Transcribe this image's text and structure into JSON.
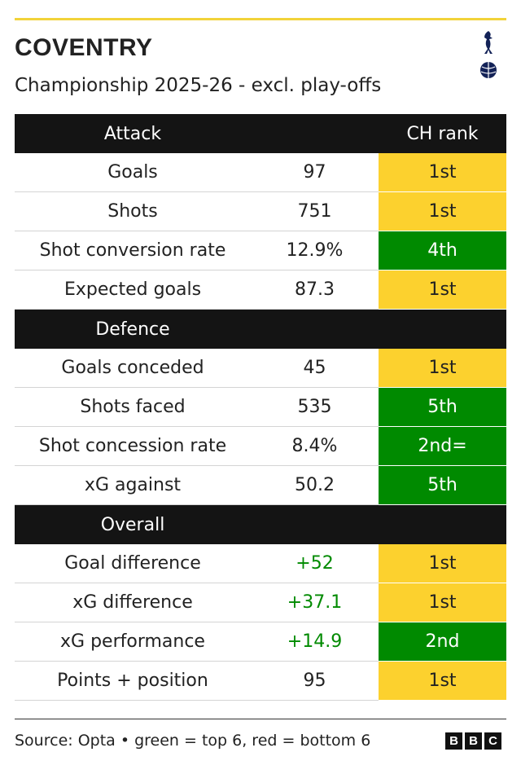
{
  "header": {
    "title": "COVENTRY",
    "subtitle": "Championship 2025-26 - excl. play-offs"
  },
  "table": {
    "rank_header": "CH rank",
    "sections": [
      {
        "title": "Attack",
        "rows": [
          {
            "label": "Goals",
            "value": "97",
            "rank": "1st",
            "rank_color": "#fcd12e"
          },
          {
            "label": "Shots",
            "value": "751",
            "rank": "1st",
            "rank_color": "#fcd12e"
          },
          {
            "label": "Shot conversion rate",
            "value": "12.9%",
            "rank": "4th",
            "rank_color": "#008a00"
          },
          {
            "label": "Expected goals",
            "value": "87.3",
            "rank": "1st",
            "rank_color": "#fcd12e"
          }
        ]
      },
      {
        "title": "Defence",
        "rows": [
          {
            "label": "Goals conceded",
            "value": "45",
            "rank": "1st",
            "rank_color": "#fcd12e"
          },
          {
            "label": "Shots faced",
            "value": "535",
            "rank": "5th",
            "rank_color": "#008a00"
          },
          {
            "label": "Shot concession rate",
            "value": "8.4%",
            "rank": "2nd=",
            "rank_color": "#008a00"
          },
          {
            "label": "xG against",
            "value": "50.2",
            "rank": "5th",
            "rank_color": "#008a00"
          }
        ]
      },
      {
        "title": "Overall",
        "rows": [
          {
            "label": "Goal difference",
            "value": "+52",
            "value_color": "#008a00",
            "rank": "1st",
            "rank_color": "#fcd12e"
          },
          {
            "label": "xG difference",
            "value": "+37.1",
            "value_color": "#008a00",
            "rank": "1st",
            "rank_color": "#fcd12e"
          },
          {
            "label": "xG performance",
            "value": "+14.9",
            "value_color": "#008a00",
            "rank": "2nd",
            "rank_color": "#008a00"
          },
          {
            "label": "Points + position",
            "value": "95",
            "rank": "1st",
            "rank_color": "#fcd12e"
          }
        ]
      }
    ]
  },
  "footer": {
    "source": "Source: Opta • green = top 6, red = bottom 6",
    "logo": [
      "B",
      "B",
      "C"
    ]
  }
}
